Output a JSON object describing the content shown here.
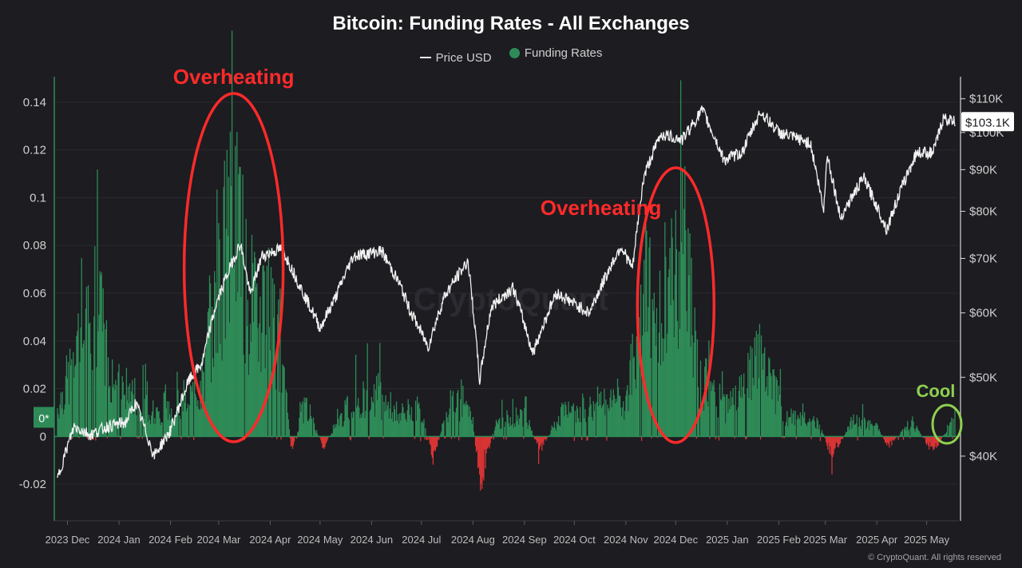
{
  "title": "Bitcoin: Funding Rates - All Exchanges",
  "legend": {
    "price_label": "Price USD",
    "funding_label": "Funding Rates"
  },
  "copyright": "© CryptoQuant. All rights reserved",
  "watermark": "CryptoQuant",
  "colors": {
    "background": "#1c1c21",
    "price": "#f0f0f0",
    "funding_positive": "#2e8b57",
    "funding_negative": "#d93434",
    "annotation_red": "#ff2a2a",
    "annotation_green": "#8fd14f"
  },
  "chart_data": {
    "type": "line",
    "title": "Bitcoin: Funding Rates - All Exchanges",
    "left_axis": {
      "ylim": [
        -0.028,
        0.148
      ],
      "ticks": [
        -0.02,
        0,
        0.02,
        0.04,
        0.06,
        0.08,
        0.1,
        0.12,
        0.14
      ],
      "tick_labels": [
        "-0.02",
        "0",
        "0.02",
        "0.04",
        "0.06",
        "0.08",
        "0.1",
        "0.12",
        "0.14"
      ],
      "current_label": "0*",
      "current_value": 0.008
    },
    "right_axis": {
      "scale": "log",
      "ylim": [
        35000,
        115000
      ],
      "ticks": [
        40000,
        50000,
        60000,
        70000,
        80000,
        90000,
        100000,
        110000
      ],
      "tick_labels": [
        "$40K",
        "$50K",
        "$60K",
        "$70K",
        "$80K",
        "$90K",
        "$100K",
        "$110K"
      ],
      "current_label": "$103.1K",
      "current_value": 103100
    },
    "x_axis": {
      "start": "2023-11-25",
      "end": "2025-05-18",
      "tick_dates": [
        "2023-12-01",
        "2024-01-01",
        "2024-02-01",
        "2024-03-01",
        "2024-04-01",
        "2024-05-01",
        "2024-06-01",
        "2024-07-01",
        "2024-08-01",
        "2024-09-01",
        "2024-10-01",
        "2024-11-01",
        "2024-12-01",
        "2025-01-01",
        "2025-02-01",
        "2025-03-01",
        "2025-04-01",
        "2025-05-01"
      ],
      "tick_labels": [
        "2023 Dec",
        "2024 Jan",
        "2024 Feb",
        "2024 Mar",
        "2024 Apr",
        "2024 May",
        "2024 Jun",
        "2024 Jul",
        "2024 Aug",
        "2024 Sep",
        "2024 Oct",
        "2024 Nov",
        "2024 Dec",
        "2025 Jan",
        "2025 Feb",
        "2025 Mar",
        "2025 Apr",
        "2025 May"
      ]
    },
    "series": [
      {
        "name": "Price USD",
        "axis": "right",
        "points": [
          [
            "2023-11-25",
            37500
          ],
          [
            "2023-12-05",
            43500
          ],
          [
            "2023-12-15",
            42500
          ],
          [
            "2023-12-25",
            43500
          ],
          [
            "2024-01-05",
            44000
          ],
          [
            "2024-01-11",
            46500
          ],
          [
            "2024-01-22",
            40000
          ],
          [
            "2024-02-01",
            43000
          ],
          [
            "2024-02-12",
            49500
          ],
          [
            "2024-02-20",
            52000
          ],
          [
            "2024-02-28",
            61000
          ],
          [
            "2024-03-05",
            66000
          ],
          [
            "2024-03-14",
            73000
          ],
          [
            "2024-03-20",
            63000
          ],
          [
            "2024-03-27",
            70500
          ],
          [
            "2024-04-08",
            72000
          ],
          [
            "2024-04-20",
            64000
          ],
          [
            "2024-05-01",
            57500
          ],
          [
            "2024-05-10",
            62500
          ],
          [
            "2024-05-21",
            70500
          ],
          [
            "2024-06-07",
            71500
          ],
          [
            "2024-06-18",
            65000
          ],
          [
            "2024-06-24",
            60500
          ],
          [
            "2024-07-05",
            54500
          ],
          [
            "2024-07-15",
            63000
          ],
          [
            "2024-07-29",
            69500
          ],
          [
            "2024-08-05",
            49500
          ],
          [
            "2024-08-12",
            61000
          ],
          [
            "2024-08-25",
            64500
          ],
          [
            "2024-09-06",
            53500
          ],
          [
            "2024-09-20",
            63500
          ],
          [
            "2024-10-10",
            60000
          ],
          [
            "2024-10-29",
            72500
          ],
          [
            "2024-11-05",
            68000
          ],
          [
            "2024-11-12",
            88500
          ],
          [
            "2024-11-22",
            99500
          ],
          [
            "2024-12-05",
            98000
          ],
          [
            "2024-12-17",
            106500
          ],
          [
            "2024-12-30",
            92500
          ],
          [
            "2025-01-10",
            94500
          ],
          [
            "2025-01-21",
            106000
          ],
          [
            "2025-02-01",
            100000
          ],
          [
            "2025-02-20",
            97000
          ],
          [
            "2025-02-28",
            80000
          ],
          [
            "2025-03-02",
            94000
          ],
          [
            "2025-03-10",
            78500
          ],
          [
            "2025-03-24",
            88000
          ],
          [
            "2025-04-07",
            76000
          ],
          [
            "2025-04-15",
            84500
          ],
          [
            "2025-04-25",
            94500
          ],
          [
            "2025-05-05",
            94500
          ],
          [
            "2025-05-11",
            104000
          ],
          [
            "2025-05-18",
            103100
          ]
        ]
      },
      {
        "name": "Funding Rates",
        "axis": "left",
        "points": [
          [
            "2023-11-25",
            0.012
          ],
          [
            "2023-12-08",
            0.036
          ],
          [
            "2023-12-18",
            0.055
          ],
          [
            "2023-12-30",
            0.022
          ],
          [
            "2024-01-12",
            0.016
          ],
          [
            "2024-01-25",
            0.008
          ],
          [
            "2024-02-08",
            0.013
          ],
          [
            "2024-02-20",
            0.022
          ],
          [
            "2024-02-29",
            0.058
          ],
          [
            "2024-03-06",
            0.082
          ],
          [
            "2024-03-12",
            0.096
          ],
          [
            "2024-03-20",
            0.045
          ],
          [
            "2024-03-28",
            0.062
          ],
          [
            "2024-04-06",
            0.038
          ],
          [
            "2024-04-14",
            -0.006
          ],
          [
            "2024-04-22",
            0.014
          ],
          [
            "2024-05-03",
            -0.004
          ],
          [
            "2024-05-18",
            0.012
          ],
          [
            "2024-06-02",
            0.018
          ],
          [
            "2024-06-18",
            0.009
          ],
          [
            "2024-07-01",
            0.012
          ],
          [
            "2024-07-08",
            -0.008
          ],
          [
            "2024-07-20",
            0.016
          ],
          [
            "2024-08-01",
            0.007
          ],
          [
            "2024-08-05",
            -0.02
          ],
          [
            "2024-08-15",
            0.006
          ],
          [
            "2024-09-01",
            0.009
          ],
          [
            "2024-09-10",
            -0.006
          ],
          [
            "2024-09-25",
            0.011
          ],
          [
            "2024-10-15",
            0.013
          ],
          [
            "2024-11-01",
            0.014
          ],
          [
            "2024-11-12",
            0.06
          ],
          [
            "2024-11-22",
            0.045
          ],
          [
            "2024-12-06",
            0.08
          ],
          [
            "2024-12-15",
            0.025
          ],
          [
            "2024-12-31",
            0.012
          ],
          [
            "2025-01-20",
            0.032
          ],
          [
            "2025-02-05",
            0.008
          ],
          [
            "2025-02-25",
            0.006
          ],
          [
            "2025-03-05",
            -0.008
          ],
          [
            "2025-03-18",
            0.007
          ],
          [
            "2025-04-01",
            0.004
          ],
          [
            "2025-04-08",
            -0.004
          ],
          [
            "2025-04-22",
            0.006
          ],
          [
            "2025-05-05",
            -0.006
          ],
          [
            "2025-05-18",
            0.008
          ]
        ]
      }
    ],
    "annotations": [
      {
        "text": "Overheating",
        "date": "2024-03-10",
        "value": 0.148
      },
      {
        "text": "Overheating",
        "date": "2024-11-10",
        "value": 0.097
      },
      {
        "text": "Cool",
        "date": "2025-05-10",
        "value": 0.019
      }
    ]
  }
}
